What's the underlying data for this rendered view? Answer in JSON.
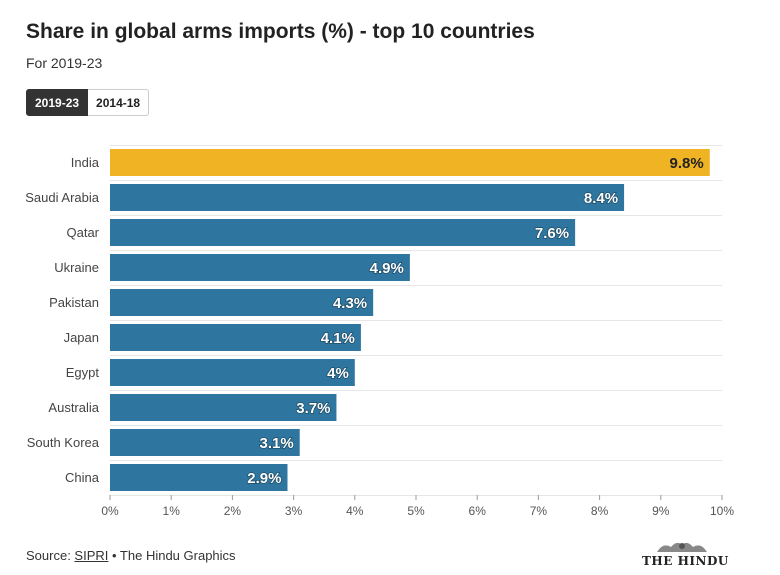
{
  "header": {
    "title": "Share in global arms imports (%) - top 10 countries",
    "subtitle": "For 2019-23"
  },
  "toggle": {
    "options": [
      "2019-23",
      "2014-18"
    ],
    "selected": "2019-23"
  },
  "chart_data": {
    "type": "bar",
    "orientation": "horizontal",
    "categories": [
      "India",
      "Saudi Arabia",
      "Qatar",
      "Ukraine",
      "Pakistan",
      "Japan",
      "Egypt",
      "Australia",
      "South Korea",
      "China"
    ],
    "values": [
      9.8,
      8.4,
      7.6,
      4.9,
      4.3,
      4.1,
      4,
      3.7,
      3.1,
      2.9
    ],
    "value_labels": [
      "9.8%",
      "8.4%",
      "7.6%",
      "4.9%",
      "4.3%",
      "4.1%",
      "4%",
      "3.7%",
      "3.1%",
      "2.9%"
    ],
    "highlight_category": "India",
    "xlim": [
      0,
      10
    ],
    "xticks": [
      0,
      1,
      2,
      3,
      4,
      5,
      6,
      7,
      8,
      9,
      10
    ],
    "xtick_labels": [
      "0%",
      "1%",
      "2%",
      "3%",
      "4%",
      "5%",
      "6%",
      "7%",
      "8%",
      "9%",
      "10%"
    ],
    "grid": true,
    "legend": "none",
    "colors": {
      "bar": "#2e76a0",
      "highlight": "#f0b323",
      "grid": "#e6e6e6"
    }
  },
  "footer": {
    "source_prefix": "Source: ",
    "source_link": "SIPRI",
    "source_suffix": " • The Hindu Graphics",
    "logo_text": "THE HINDU"
  }
}
